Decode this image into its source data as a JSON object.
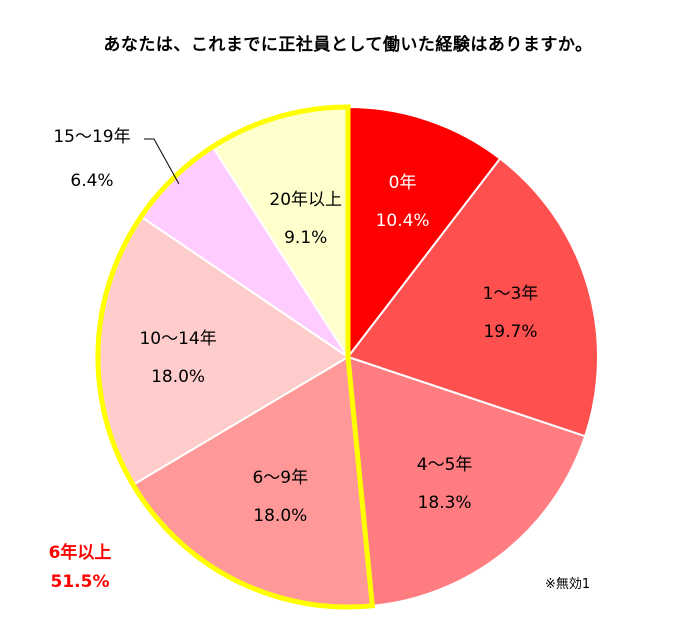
{
  "chart_data": {
    "type": "pie",
    "title": "あなたは、これまでに正社員として働いた経験はありますか。",
    "start": "top",
    "direction": "clockwise",
    "slices": [
      {
        "label": "0年",
        "percent": "10.4%",
        "value": 10.4,
        "color": "#ff0000"
      },
      {
        "label": "1～3年",
        "percent": "19.7%",
        "value": 19.7,
        "color": "#ff5050"
      },
      {
        "label": "4～5年",
        "percent": "18.3%",
        "value": 18.3,
        "color": "#ff7c80"
      },
      {
        "label": "6～9年",
        "percent": "18.0%",
        "value": 18.0,
        "color": "#ff9999"
      },
      {
        "label": "10～14年",
        "percent": "18.0%",
        "value": 18.0,
        "color": "#ffcccc"
      },
      {
        "label": "15～19年",
        "percent": "6.4%",
        "value": 6.4,
        "color": "#ffccff"
      },
      {
        "label": "20年以上",
        "percent": "9.1%",
        "value": 9.1,
        "color": "#ffffcc"
      }
    ],
    "highlight_group": {
      "label": "6年以上",
      "percent": "51.5%",
      "slices": [
        "6～9年",
        "10～14年",
        "15～19年",
        "20年以上"
      ],
      "outline_color": "#ffff00",
      "text_color": "#ff0000"
    },
    "note": "※無効1"
  }
}
